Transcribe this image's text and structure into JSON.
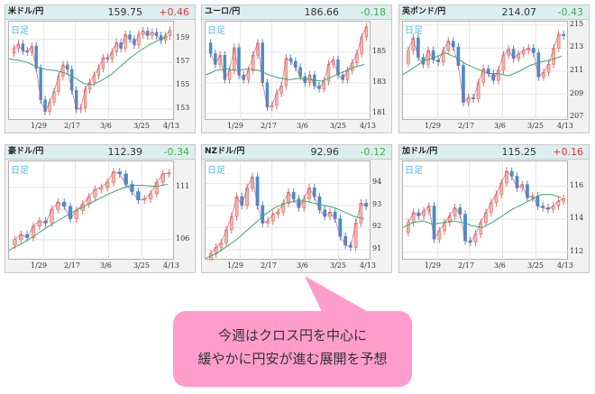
{
  "panels": [
    {
      "pair": "米ドル/円",
      "price": "159.75",
      "change": "+0.46",
      "change_dir": "up",
      "tag": "日足",
      "y_ticks": [
        "159",
        "157",
        "155",
        "153"
      ],
      "x_ticks": [
        "1/29",
        "2/17",
        "3/6",
        "3/25",
        "4/13"
      ]
    },
    {
      "pair": "ユーロ/円",
      "price": "186.66",
      "change": "-0.18",
      "change_dir": "down",
      "tag": "日足",
      "y_ticks": [
        "185",
        "183",
        "181"
      ],
      "x_ticks": [
        "1/29",
        "2/17",
        "3/6",
        "3/25",
        "4/13"
      ]
    },
    {
      "pair": "英ポンド/円",
      "price": "214.07",
      "change": "-0.43",
      "change_dir": "down",
      "tag": "日足",
      "y_ticks": [
        "215",
        "213",
        "211",
        "209",
        "207"
      ],
      "x_ticks": [
        "1/29",
        "2/17",
        "3/6",
        "3/25",
        "4/13"
      ]
    },
    {
      "pair": "豪ドル/円",
      "price": "112.39",
      "change": "-0.34",
      "change_dir": "down",
      "tag": "日足",
      "y_ticks": [
        "111",
        "106"
      ],
      "x_ticks": [
        "1/29",
        "2/17",
        "3/6",
        "3/25",
        "4/13"
      ]
    },
    {
      "pair": "NZドル/円",
      "price": "92.96",
      "change": "-0.12",
      "change_dir": "down",
      "tag": "日足",
      "y_ticks": [
        "94",
        "93",
        "92",
        "91"
      ],
      "x_ticks": [
        "1/29",
        "2/17",
        "3/6",
        "3/25",
        "4/13"
      ]
    },
    {
      "pair": "加ドル/円",
      "price": "115.25",
      "change": "+0.16",
      "change_dir": "up",
      "tag": "日足",
      "y_ticks": [
        "116",
        "114",
        "112"
      ],
      "x_ticks": [
        "1/29",
        "2/17",
        "3/6",
        "3/25",
        "4/13"
      ]
    }
  ],
  "callout": {
    "line1": "今週はクロス円を中心に",
    "line2": "緩やかに円安が進む展開を予想"
  },
  "colors": {
    "up": "#e8303a",
    "down": "#4aa84a",
    "candle_up": "#f4a9a0",
    "candle_down": "#4a8cc8",
    "ma": "#3aa86a",
    "bubble": "#fe9dcc"
  },
  "chart_data": [
    {
      "type": "candlestick",
      "title": "米ドル/円 日足",
      "price": 159.75,
      "change": 0.46,
      "x_ticks": [
        "1/29",
        "2/17",
        "3/6",
        "3/25",
        "4/13"
      ],
      "ylim": [
        152,
        160.5
      ],
      "y_ticks": [
        153,
        155,
        157,
        159
      ],
      "close_approx": [
        158.2,
        158.6,
        158.0,
        157.9,
        158.4,
        156.5,
        153.8,
        152.8,
        153.6,
        154.5,
        155.8,
        156.8,
        156.4,
        154.6,
        153.0,
        153.1,
        154.7,
        155.3,
        155.9,
        156.5,
        157.4,
        157.3,
        157.9,
        158.7,
        158.2,
        159.4,
        159.0,
        158.5,
        159.4,
        159.7,
        159.3,
        159.6,
        159.3,
        158.9,
        159.3,
        159.75
      ],
      "ma": [
        157.3,
        157.2,
        157.0,
        156.6,
        156.4,
        156.3,
        156.1,
        155.7,
        155.2,
        155.1,
        155.5,
        156.0,
        156.7,
        157.4,
        158.0,
        158.5,
        158.9,
        159.2
      ]
    },
    {
      "type": "candlestick",
      "title": "ユーロ/円 日足",
      "price": 186.66,
      "change": -0.18,
      "x_ticks": [
        "1/29",
        "2/17",
        "3/6",
        "3/25",
        "4/13"
      ],
      "ylim": [
        180.5,
        187
      ],
      "y_ticks": [
        181,
        183,
        185
      ],
      "close_approx": [
        184.9,
        184.2,
        184.8,
        183.2,
        183.8,
        185.3,
        183.5,
        183.2,
        183.8,
        184.8,
        185.6,
        183.0,
        181.4,
        181.5,
        182.3,
        182.8,
        184.6,
        184.4,
        184.0,
        183.4,
        183.0,
        183.5,
        182.8,
        182.6,
        183.1,
        184.2,
        184.5,
        183.5,
        183.2,
        183.8,
        184.3,
        184.9,
        186.0,
        186.66
      ],
      "ma": [
        183.5,
        183.8,
        183.9,
        183.8,
        183.9,
        183.8,
        183.5,
        183.3,
        183.2,
        183.3,
        183.2,
        183.1,
        183.4,
        183.7,
        184.0,
        184.2
      ]
    },
    {
      "type": "candlestick",
      "title": "英ポンド/円 日足",
      "price": 214.07,
      "change": -0.43,
      "x_ticks": [
        "1/29",
        "2/17",
        "3/6",
        "3/25",
        "4/13"
      ],
      "ylim": [
        206.7,
        215.3
      ],
      "y_ticks": [
        207,
        209,
        211,
        213,
        215
      ],
      "close_approx": [
        212.8,
        213.9,
        212.2,
        211.6,
        212.8,
        212.0,
        211.8,
        212.8,
        213.6,
        213.1,
        211.5,
        208.3,
        208.7,
        208.6,
        210.0,
        211.2,
        210.8,
        210.2,
        211.1,
        212.4,
        212.9,
        212.1,
        212.5,
        212.8,
        213.0,
        212.6,
        210.5,
        210.9,
        211.6,
        213.0,
        214.2,
        214.07
      ],
      "ma": [
        210.7,
        211.3,
        211.9,
        212.2,
        212.6,
        212.2,
        211.6,
        211.2,
        210.8,
        210.8,
        210.6,
        211.0,
        211.5,
        211.8,
        212.0,
        212.3
      ]
    },
    {
      "type": "candlestick",
      "title": "豪ドル/円 日足",
      "price": 112.39,
      "change": -0.34,
      "x_ticks": [
        "1/29",
        "2/17",
        "3/6",
        "3/25",
        "4/13"
      ],
      "ylim": [
        104,
        113.5
      ],
      "y_ticks": [
        106,
        111
      ],
      "close_approx": [
        106.0,
        106.5,
        106.2,
        107.3,
        107.8,
        107.6,
        108.9,
        109.6,
        109.2,
        108.0,
        108.8,
        109.4,
        110.1,
        110.8,
        111.0,
        111.5,
        112.5,
        112.3,
        111.3,
        110.6,
        109.8,
        109.9,
        110.4,
        111.5,
        112.3,
        112.39
      ],
      "ma": [
        105.0,
        105.6,
        106.3,
        107.1,
        107.8,
        108.5,
        109.1,
        109.7,
        110.3,
        110.8,
        111.2,
        111.2,
        111.1,
        111.3
      ]
    },
    {
      "type": "candlestick",
      "title": "NZドル/円 日足",
      "price": 92.96,
      "change": -0.12,
      "x_ticks": [
        "1/29",
        "2/17",
        "3/6",
        "3/25",
        "4/13"
      ],
      "ylim": [
        90.5,
        95
      ],
      "y_ticks": [
        91,
        92,
        93,
        94
      ],
      "close_approx": [
        90.8,
        91.1,
        91.3,
        91.9,
        92.5,
        93.4,
        93.0,
        93.8,
        94.3,
        93.0,
        92.2,
        92.3,
        92.6,
        92.7,
        93.1,
        93.6,
        93.3,
        92.9,
        93.3,
        93.8,
        93.4,
        92.8,
        92.5,
        92.7,
        92.4,
        91.6,
        91.2,
        91.1,
        92.2,
        93.1,
        92.96
      ],
      "ma": [
        90.6,
        90.8,
        91.1,
        91.4,
        91.8,
        92.2,
        92.6,
        92.9,
        93.1,
        93.2,
        93.2,
        93.1,
        93.0,
        92.9,
        92.7,
        92.5,
        92.4
      ]
    },
    {
      "type": "candlestick",
      "title": "加ドル/円 日足",
      "price": 115.25,
      "change": 0.16,
      "x_ticks": [
        "1/29",
        "2/17",
        "3/6",
        "3/25",
        "4/13"
      ],
      "ylim": [
        111.5,
        117.5
      ],
      "y_ticks": [
        112,
        114,
        116
      ],
      "close_approx": [
        113.8,
        114.4,
        114.2,
        114.5,
        114.8,
        112.8,
        113.3,
        113.8,
        114.2,
        114.7,
        114.3,
        112.7,
        112.6,
        113.1,
        113.8,
        114.4,
        115.0,
        115.5,
        116.2,
        116.9,
        116.6,
        115.9,
        116.1,
        115.3,
        115.4,
        114.8,
        114.7,
        114.6,
        114.8,
        115.1,
        115.25
      ],
      "ma": [
        113.5,
        113.8,
        113.9,
        113.7,
        113.8,
        113.9,
        113.8,
        113.6,
        113.5,
        113.8,
        114.2,
        114.6,
        114.9,
        115.2,
        115.5,
        115.5,
        115.3
      ]
    }
  ]
}
